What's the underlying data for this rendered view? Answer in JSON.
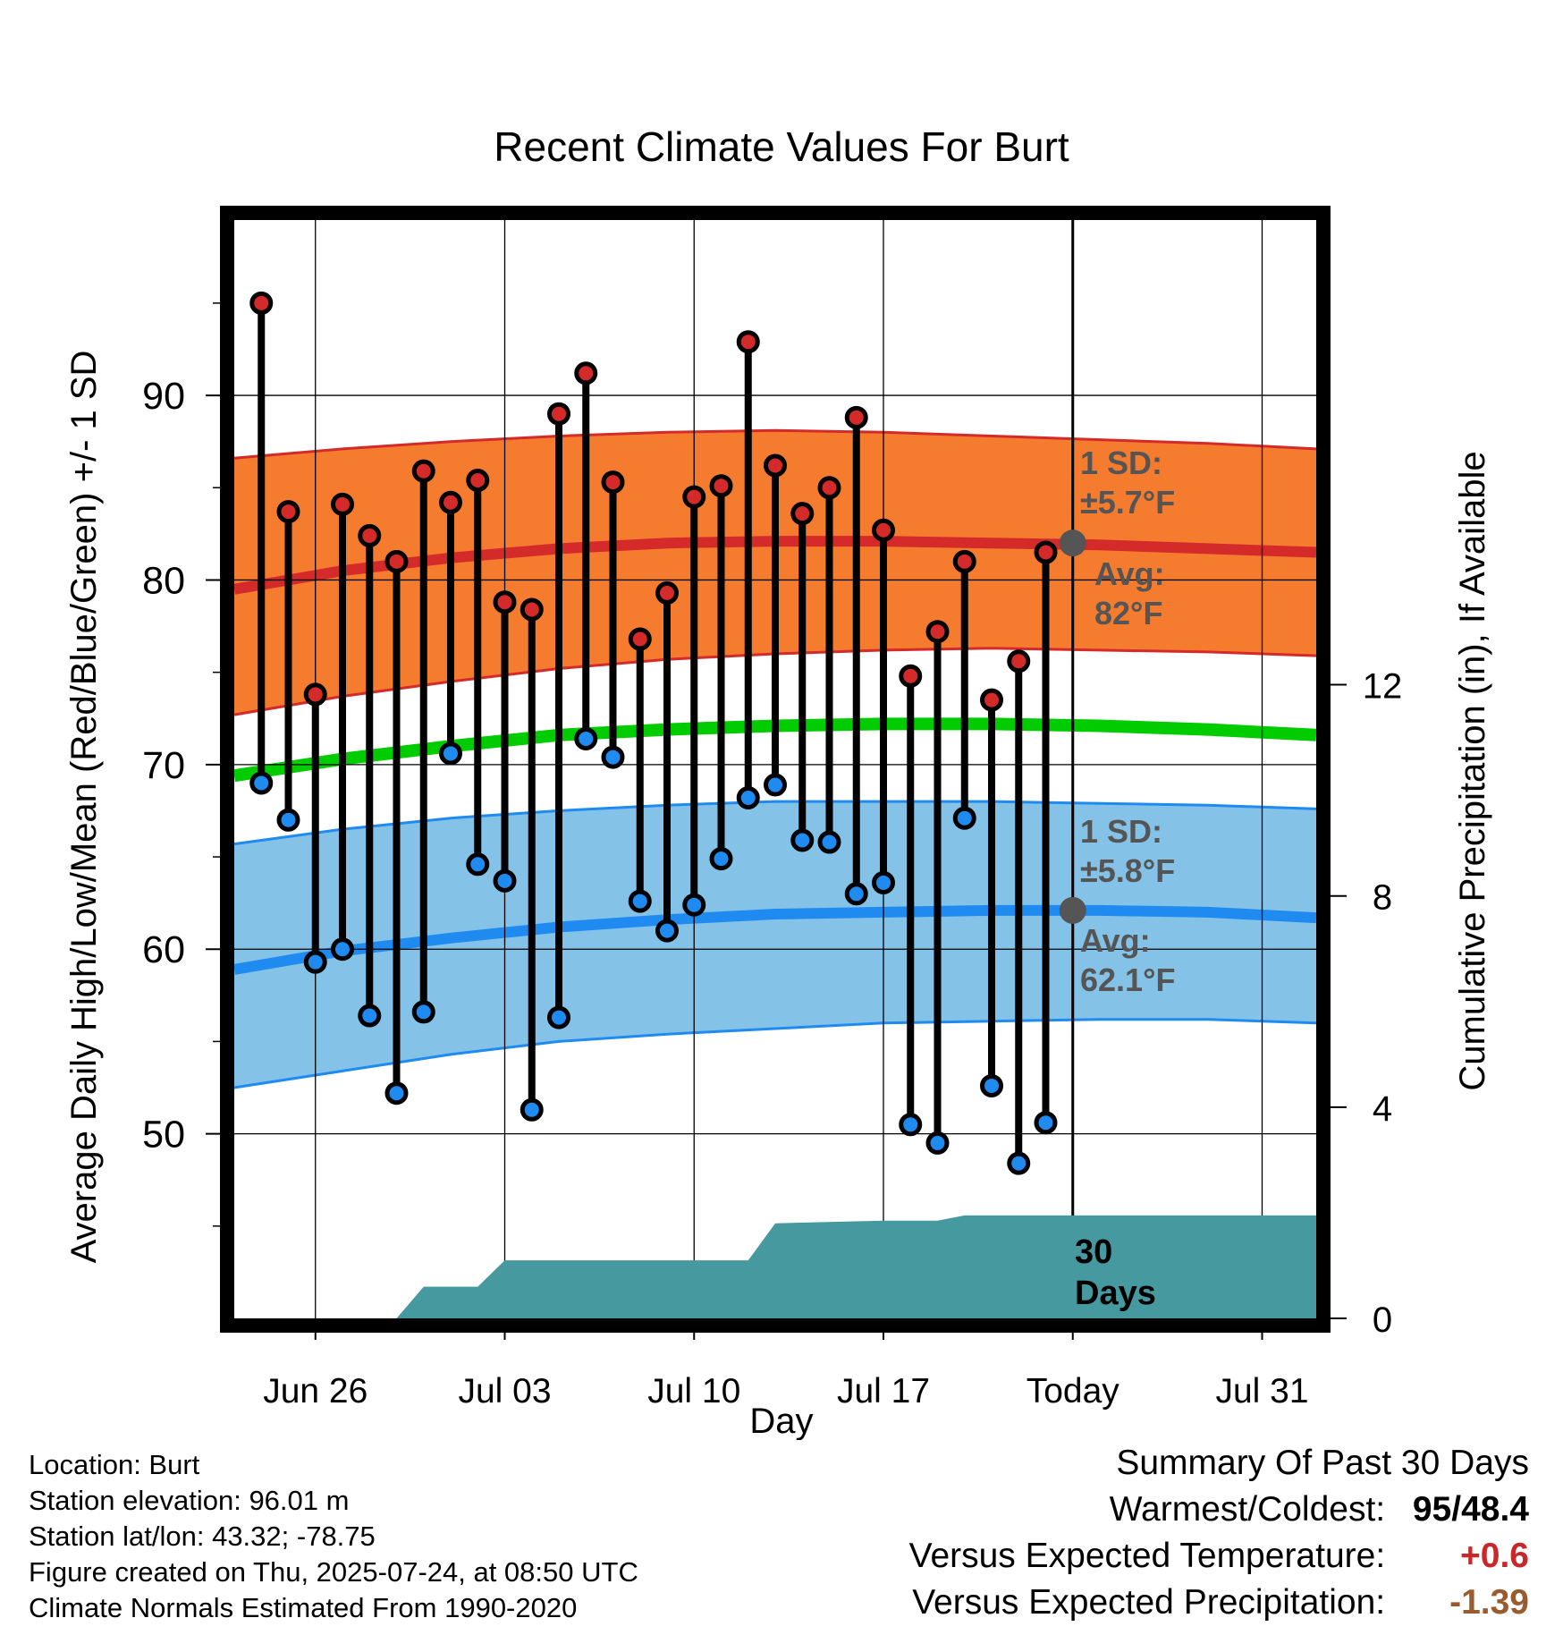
{
  "colors": {
    "high_band": "#F57B2E",
    "high_mean": "#D42A2A",
    "low_band": "#84C2E8",
    "low_mean": "#1F8BF0",
    "mean_line": "#00CC00",
    "precip": "#46999F",
    "avg_marker": "#555555",
    "annotation_text": "#555555",
    "plus_value": "#C8282A",
    "precip_value": "#9A5B2E"
  },
  "chart_data": {
    "type": "line",
    "title": "Recent Climate Values For Burt",
    "xlabel": "Day",
    "ylabel": "Average Daily High/Low/Mean (Red/Blue/Green) +/- 1 SD",
    "y2label": "Cumulative Precipitation (in), If Available",
    "ylim": [
      40,
      99.5
    ],
    "y2lim": [
      0,
      20.8
    ],
    "x_tick_labels": [
      "Jun 26",
      "Jul 03",
      "Jul 10",
      "Jul 17",
      "Today",
      "Jul 31"
    ],
    "y_tick_labels": [
      "50",
      "60",
      "70",
      "80",
      "90"
    ],
    "y2_tick_labels": [
      "0",
      "4",
      "8",
      "12"
    ],
    "grid": true,
    "days": [
      "Jun 24",
      "Jun 25",
      "Jun 26",
      "Jun 27",
      "Jun 28",
      "Jun 29",
      "Jun 30",
      "Jul 01",
      "Jul 02",
      "Jul 03",
      "Jul 04",
      "Jul 05",
      "Jul 06",
      "Jul 07",
      "Jul 08",
      "Jul 09",
      "Jul 10",
      "Jul 11",
      "Jul 12",
      "Jul 13",
      "Jul 14",
      "Jul 15",
      "Jul 16",
      "Jul 17",
      "Jul 18",
      "Jul 19",
      "Jul 20",
      "Jul 21",
      "Jul 22",
      "Jul 23"
    ],
    "daily_high": [
      95.0,
      83.7,
      73.8,
      84.1,
      82.4,
      81.0,
      85.9,
      84.2,
      85.4,
      78.8,
      78.4,
      89.0,
      91.2,
      85.3,
      76.8,
      79.3,
      84.5,
      85.1,
      92.9,
      86.2,
      83.6,
      85.0,
      88.8,
      82.7,
      74.8,
      77.2,
      81.0,
      73.5,
      75.6,
      81.5
    ],
    "daily_low": [
      69.0,
      67.0,
      59.3,
      60.0,
      56.4,
      52.2,
      56.6,
      70.6,
      64.6,
      63.7,
      51.3,
      56.3,
      71.4,
      70.4,
      62.6,
      61.0,
      62.4,
      64.9,
      68.2,
      68.9,
      65.9,
      65.8,
      63.0,
      63.6,
      50.5,
      49.5,
      67.1,
      52.6,
      48.4,
      50.6
    ],
    "normal_x": [
      "Jun 23",
      "Jun 27",
      "Jul 01",
      "Jul 05",
      "Jul 09",
      "Jul 13",
      "Jul 17",
      "Jul 21",
      "Jul 25",
      "Jul 29",
      "Aug 02"
    ],
    "normal_high": [
      79.5,
      80.5,
      81.2,
      81.7,
      82.0,
      82.1,
      82.1,
      82.0,
      81.9,
      81.7,
      81.5
    ],
    "normal_high_upper": [
      86.6,
      87.1,
      87.5,
      87.8,
      88.0,
      88.1,
      88.0,
      87.8,
      87.6,
      87.4,
      87.1
    ],
    "normal_high_lower": [
      72.7,
      73.7,
      74.5,
      75.2,
      75.7,
      76.0,
      76.2,
      76.3,
      76.2,
      76.1,
      75.9
    ],
    "normal_mean": [
      69.4,
      70.3,
      71.0,
      71.6,
      71.9,
      72.1,
      72.2,
      72.2,
      72.1,
      71.9,
      71.6
    ],
    "normal_low": [
      58.9,
      59.9,
      60.6,
      61.2,
      61.6,
      61.9,
      62.0,
      62.1,
      62.1,
      62.0,
      61.7
    ],
    "normal_low_upper": [
      65.7,
      66.5,
      67.1,
      67.5,
      67.8,
      68.0,
      68.0,
      68.0,
      67.9,
      67.8,
      67.6
    ],
    "normal_low_lower": [
      52.5,
      53.4,
      54.3,
      55.0,
      55.4,
      55.7,
      56.0,
      56.1,
      56.2,
      56.2,
      56.0
    ],
    "precip_steps": [
      {
        "x": "Jun 23",
        "value": 0.0
      },
      {
        "x": "Jun 29",
        "value": 0.0
      },
      {
        "x": "Jun 30",
        "value": 0.6
      },
      {
        "x": "Jul 01",
        "value": 0.6
      },
      {
        "x": "Jul 02",
        "value": 0.6
      },
      {
        "x": "Jul 03",
        "value": 1.1
      },
      {
        "x": "Jul 12",
        "value": 1.1
      },
      {
        "x": "Jul 13",
        "value": 1.8
      },
      {
        "x": "Jul 17",
        "value": 1.85
      },
      {
        "x": "Jul 19",
        "value": 1.85
      },
      {
        "x": "Jul 20",
        "value": 1.95
      },
      {
        "x": "Aug 02",
        "value": 1.95
      }
    ],
    "annotations": {
      "high_sd_label": "1 SD:",
      "high_sd_value": "±5.7°F",
      "high_avg_label": "Avg:",
      "high_avg_value": "82°F",
      "low_sd_label": "1 SD:",
      "low_sd_value": "±5.8°F",
      "low_avg_label": "Avg:",
      "low_avg_value": "62.1°F",
      "days_label_1": "30",
      "days_label_2": "Days"
    },
    "today_avg_high": 82,
    "today_avg_low": 62.1
  },
  "info": {
    "location": "Location: Burt",
    "elevation": "Station elevation: 96.01 m",
    "latlon": "Station lat/lon: 43.32; -78.75",
    "created": "Figure created on Thu, 2025-07-24, at 08:50 UTC",
    "normals": "Climate Normals Estimated From 1990-2020"
  },
  "summary": {
    "title": "Summary Of Past 30 Days",
    "warm_cold_label": "Warmest/Coldest:",
    "warmest": "95",
    "coldest": "/48.4",
    "temp_label": "Versus Expected Temperature:",
    "temp_value": "+0.6",
    "precip_label": "Versus Expected Precipitation:",
    "precip_value": "-1.39"
  }
}
